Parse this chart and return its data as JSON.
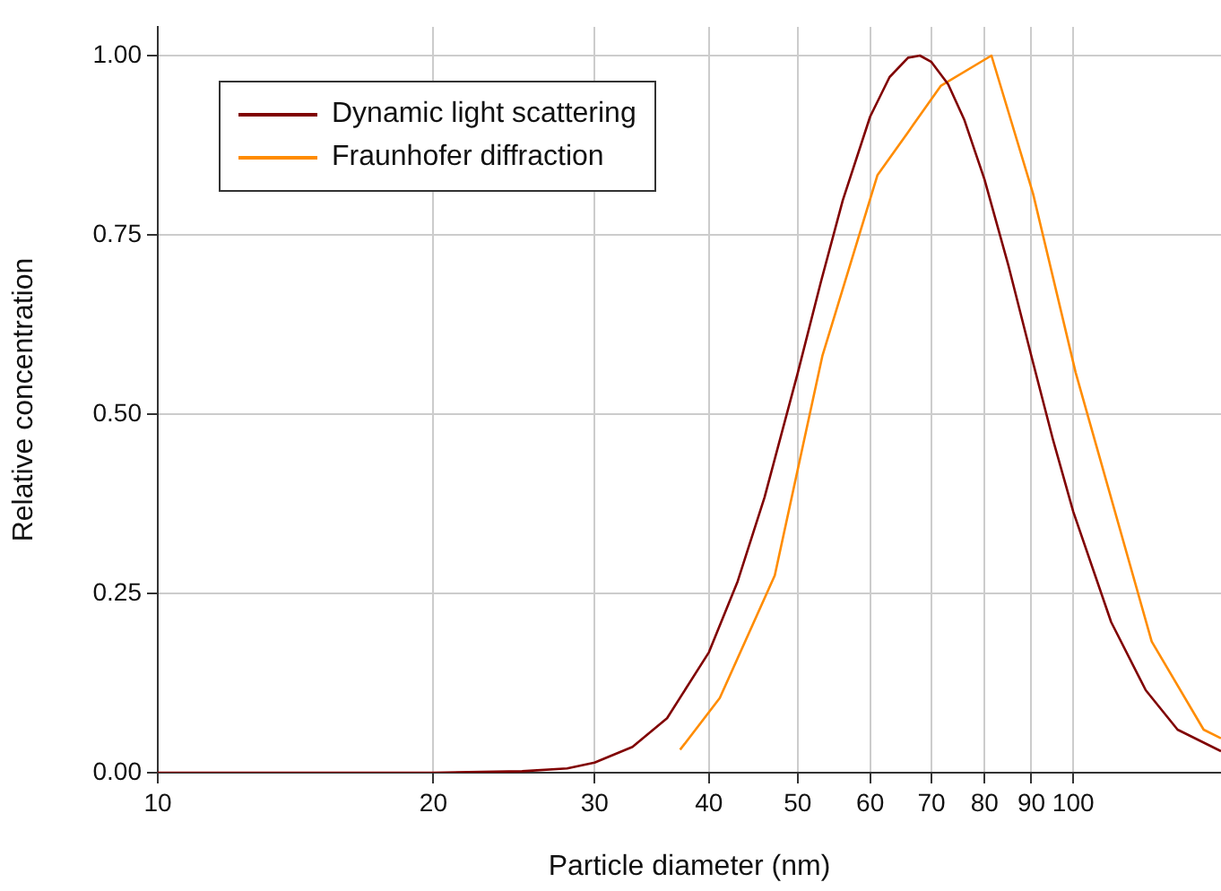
{
  "chart_data": {
    "type": "line",
    "xlabel": "Particle diameter (nm)",
    "ylabel": "Relative concentration",
    "log": "x",
    "xlim": [
      10,
      145
    ],
    "xticks": [
      10,
      20,
      30,
      40,
      50,
      60,
      70,
      80,
      90,
      100
    ],
    "ylim": [
      0,
      1.04
    ],
    "yticks": [
      {
        "value": 0,
        "label": "0.00"
      },
      {
        "value": 0.25,
        "label": "0.25"
      },
      {
        "value": 0.5,
        "label": "0.50"
      },
      {
        "value": 0.75,
        "label": "0.75"
      },
      {
        "value": 1,
        "label": "1.00"
      }
    ],
    "grid": true,
    "legend": "top left",
    "marker": "none",
    "line_style": "solid",
    "series": [
      {
        "name": "Dynamic light scattering",
        "color": "#800000",
        "x": [
          10,
          15,
          20,
          25,
          28,
          30,
          33,
          36,
          40,
          43,
          46,
          50,
          53,
          56,
          60,
          63,
          66,
          68,
          70,
          73,
          76,
          80,
          85,
          90,
          95,
          100,
          110,
          120,
          130,
          145
        ],
        "values": [
          0,
          0,
          0,
          0.002,
          0.006,
          0.014,
          0.036,
          0.076,
          0.168,
          0.267,
          0.384,
          0.557,
          0.684,
          0.798,
          0.915,
          0.97,
          0.997,
          1,
          0.991,
          0.96,
          0.911,
          0.827,
          0.706,
          0.581,
          0.465,
          0.364,
          0.21,
          0.115,
          0.06,
          0.03
        ]
      },
      {
        "name": "Fraunhofer diffraction",
        "color": "#ff8c00",
        "x": [
          37.2,
          41.1,
          47.2,
          53.2,
          61.1,
          65.9,
          71.7,
          81.4,
          90.4,
          100.6,
          121.8,
          138.8,
          145
        ],
        "values": [
          0.032,
          0.104,
          0.275,
          0.581,
          0.833,
          0.892,
          0.958,
          1,
          0.807,
          0.558,
          0.183,
          0.06,
          0.048
        ]
      }
    ]
  }
}
